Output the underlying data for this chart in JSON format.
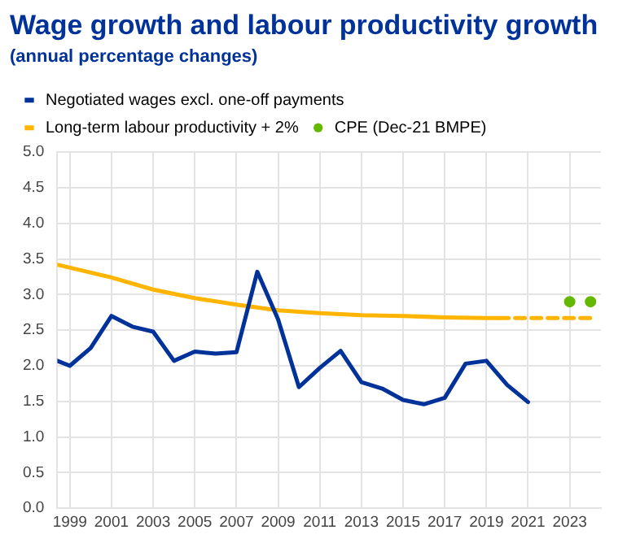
{
  "chart_data": {
    "type": "line",
    "title": "Wage growth and labour productivity growth",
    "subtitle": "(annual percentage changes)",
    "legend": "top left",
    "grid": true,
    "marker": "none",
    "xlim": [
      1998.4,
      2024.5
    ],
    "xticks": [
      1999,
      2001,
      2003,
      2005,
      2007,
      2009,
      2011,
      2013,
      2015,
      2017,
      2019,
      2021,
      2023
    ],
    "ylim": [
      0,
      5
    ],
    "yticks": [
      {
        "value": 0,
        "label": "0.0"
      },
      {
        "value": 0.5,
        "label": "0.5"
      },
      {
        "value": 1,
        "label": "1.0"
      },
      {
        "value": 1.5,
        "label": "1.5"
      },
      {
        "value": 2,
        "label": "2.0"
      },
      {
        "value": 2.5,
        "label": "2.5"
      },
      {
        "value": 3,
        "label": "3.0"
      },
      {
        "value": 3.5,
        "label": "3.5"
      },
      {
        "value": 4,
        "label": "4.0"
      },
      {
        "value": 4.5,
        "label": "4.5"
      },
      {
        "value": 5,
        "label": "5.0"
      }
    ],
    "series": [
      {
        "name": "Negotiated wages excl. one-off payments",
        "color": "#003299",
        "x": [
          1998.4,
          1999,
          2000,
          2001,
          2002,
          2003,
          2004,
          2005,
          2006,
          2007,
          2008,
          2009,
          2010,
          2011,
          2012,
          2013,
          2014,
          2015,
          2016,
          2017,
          2018,
          2019,
          2020,
          2021
        ],
        "values": [
          2.07,
          2.0,
          2.25,
          2.7,
          2.55,
          2.48,
          2.07,
          2.2,
          2.17,
          2.19,
          3.32,
          2.65,
          1.7,
          1.97,
          2.21,
          1.77,
          1.68,
          1.52,
          1.46,
          1.55,
          2.03,
          2.07,
          1.73,
          1.49
        ]
      },
      {
        "name": "Long-term labour productivity + 2%",
        "color": "#ffb400",
        "x": [
          1998.4,
          2001,
          2003,
          2005,
          2007,
          2009,
          2011,
          2013,
          2015,
          2017,
          2019,
          2019.6
        ],
        "values": [
          3.42,
          3.24,
          3.07,
          2.95,
          2.86,
          2.78,
          2.74,
          2.71,
          2.7,
          2.68,
          2.67,
          2.67
        ]
      },
      {
        "color": "#ffb400",
        "line_style": "dashed",
        "x": [
          2019.6,
          2024
        ],
        "values": [
          2.67,
          2.67
        ]
      },
      {
        "name": "CPE (Dec-21 BMPE)",
        "type": "scatter",
        "marker": "circle",
        "color": "#65b800",
        "x": [
          2023,
          2024
        ],
        "values": [
          2.9,
          2.9
        ]
      }
    ]
  }
}
